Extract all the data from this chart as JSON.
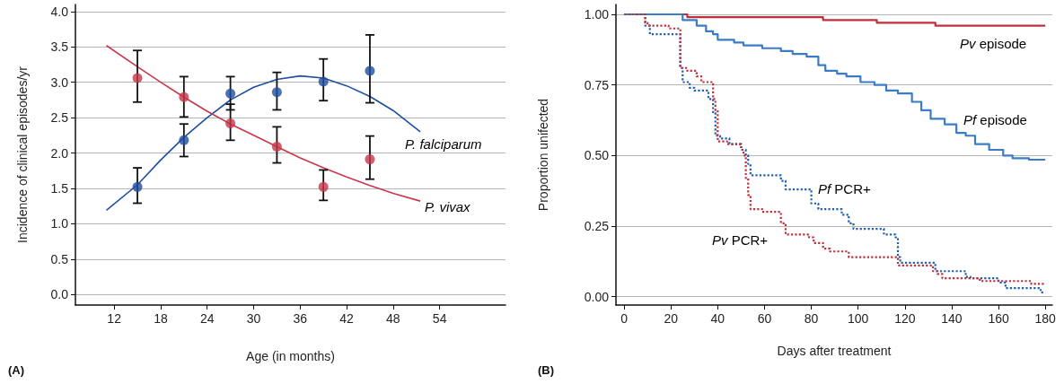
{
  "chart_data": [
    {
      "type": "scatter",
      "title": "(A)",
      "xlabel": "Age (in months)",
      "ylabel": "Incidence of clinical episodes/yr",
      "xlim": [
        7,
        62.5
      ],
      "xticks": [
        12,
        18,
        24,
        30,
        36,
        42,
        48,
        54
      ],
      "ylim": [
        -0.15,
        4.1
      ],
      "yticks": [
        {
          "value": 0,
          "label": "0.0"
        },
        0.5,
        {
          "value": 1,
          "label": "1.0"
        },
        1.5,
        {
          "value": 2,
          "label": "2.0"
        },
        2.5,
        {
          "value": 3,
          "label": "3.0"
        },
        3.5,
        {
          "value": 4,
          "label": "4.0"
        }
      ],
      "grid": "y",
      "marker": "circle",
      "series": [
        {
          "color": "#1f4fa0",
          "x": [
            15,
            21,
            27,
            33,
            39,
            45
          ],
          "values": [
            1.52,
            2.18,
            2.84,
            2.86,
            3.01,
            3.16
          ],
          "errors": [
            [
              1.29,
              1.79
            ],
            [
              1.95,
              2.41
            ],
            [
              2.61,
              3.08
            ],
            [
              2.61,
              3.14
            ],
            [
              2.74,
              3.33
            ],
            [
              2.71,
              3.67
            ]
          ]
        },
        {
          "color": "#c8374a",
          "x": [
            15,
            21,
            27,
            33,
            39,
            45
          ],
          "values": [
            3.06,
            2.79,
            2.42,
            2.09,
            1.52,
            1.91
          ],
          "errors": [
            [
              2.72,
              3.45
            ],
            [
              2.51,
              3.08
            ],
            [
              2.18,
              2.69
            ],
            [
              1.86,
              2.37
            ],
            [
              1.33,
              1.76
            ],
            [
              1.63,
              2.24
            ]
          ]
        },
        {
          "type": "line",
          "name": "P. falciparum",
          "marker": "none",
          "color": "#1f4fa0",
          "x": [
            11,
            15,
            18,
            21,
            24,
            27,
            30,
            33,
            36,
            39,
            42,
            45,
            48,
            51.5
          ],
          "values": [
            1.19,
            1.55,
            1.9,
            2.22,
            2.5,
            2.75,
            2.93,
            3.04,
            3.09,
            3.06,
            2.95,
            2.8,
            2.6,
            2.3
          ]
        },
        {
          "type": "line",
          "name": "P. vivax",
          "marker": "none",
          "color": "#c8374a",
          "x": [
            11,
            15,
            18,
            21,
            24,
            27,
            30,
            33,
            36,
            39,
            42,
            45,
            48,
            51.5
          ],
          "values": [
            3.52,
            3.22,
            3.0,
            2.79,
            2.59,
            2.41,
            2.25,
            2.09,
            1.93,
            1.79,
            1.66,
            1.54,
            1.43,
            1.32
          ]
        }
      ]
    },
    {
      "type": "step",
      "title": "(B)",
      "xlabel": "Days after treatment",
      "ylabel": "Proportion unifected",
      "xlim": [
        -3.5,
        183
      ],
      "xticks": [
        0,
        20,
        40,
        60,
        80,
        100,
        120,
        140,
        160,
        180
      ],
      "ylim": [
        -0.03,
        1.035
      ],
      "yticks": [
        {
          "value": 0,
          "label": "0.00"
        },
        0.25,
        {
          "value": 0.5,
          "label": "0.50"
        },
        0.75,
        {
          "value": 1,
          "label": "1.00"
        }
      ],
      "grid": "y",
      "series": [
        {
          "name": "Pv episode",
          "color": "#c0303a",
          "line_style": "solid",
          "x": [
            0,
            27,
            85,
            108,
            133,
            180
          ],
          "values": [
            1,
            0.99,
            0.98,
            0.97,
            0.96,
            0.96
          ]
        },
        {
          "name": "Pf episode",
          "color": "#3a7cc8",
          "line_style": "solid",
          "x": [
            0,
            25,
            31,
            35,
            38,
            40,
            47,
            51,
            59,
            67,
            72,
            78,
            83,
            86,
            91,
            95,
            101,
            107,
            112,
            117,
            123,
            127,
            131,
            137,
            142,
            146,
            150,
            156,
            162,
            166,
            173,
            180
          ],
          "values": [
            1,
            0.98,
            0.96,
            0.94,
            0.93,
            0.91,
            0.9,
            0.89,
            0.88,
            0.87,
            0.86,
            0.85,
            0.82,
            0.8,
            0.79,
            0.78,
            0.76,
            0.75,
            0.73,
            0.72,
            0.69,
            0.66,
            0.63,
            0.61,
            0.58,
            0.57,
            0.54,
            0.52,
            0.5,
            0.49,
            0.485,
            0.485
          ]
        },
        {
          "name": "Pf PCR+",
          "color": "#1f5fb0",
          "line_style": "dotted",
          "x": [
            0,
            9,
            11,
            24,
            25,
            28,
            30,
            36,
            38,
            39,
            41,
            45,
            50,
            52,
            53,
            54,
            67,
            69,
            80,
            83,
            93,
            96,
            98,
            111,
            116,
            117,
            118,
            133,
            146,
            148,
            160,
            163,
            178,
            180
          ],
          "values": [
            1,
            0.96,
            0.93,
            0.81,
            0.76,
            0.74,
            0.73,
            0.7,
            0.65,
            0.57,
            0.56,
            0.54,
            0.52,
            0.5,
            0.47,
            0.43,
            0.41,
            0.38,
            0.33,
            0.31,
            0.29,
            0.26,
            0.24,
            0.22,
            0.21,
            0.14,
            0.12,
            0.09,
            0.07,
            0.065,
            0.05,
            0.03,
            0.015,
            0.015
          ]
        },
        {
          "name": "Pv PCR+",
          "color": "#c0303a",
          "line_style": "dotted",
          "x": [
            0,
            9,
            10,
            19,
            24,
            27,
            31,
            33,
            38,
            39,
            40,
            44,
            50,
            51,
            52,
            53,
            54,
            59,
            67,
            69,
            79,
            81,
            85,
            88,
            96,
            117,
            132,
            134,
            136,
            152,
            174,
            180
          ],
          "values": [
            1,
            0.97,
            0.96,
            0.95,
            0.81,
            0.8,
            0.78,
            0.76,
            0.7,
            0.66,
            0.55,
            0.54,
            0.52,
            0.5,
            0.42,
            0.36,
            0.31,
            0.3,
            0.26,
            0.22,
            0.21,
            0.19,
            0.17,
            0.16,
            0.14,
            0.11,
            0.09,
            0.08,
            0.065,
            0.055,
            0.045,
            0.045
          ]
        }
      ]
    }
  ]
}
